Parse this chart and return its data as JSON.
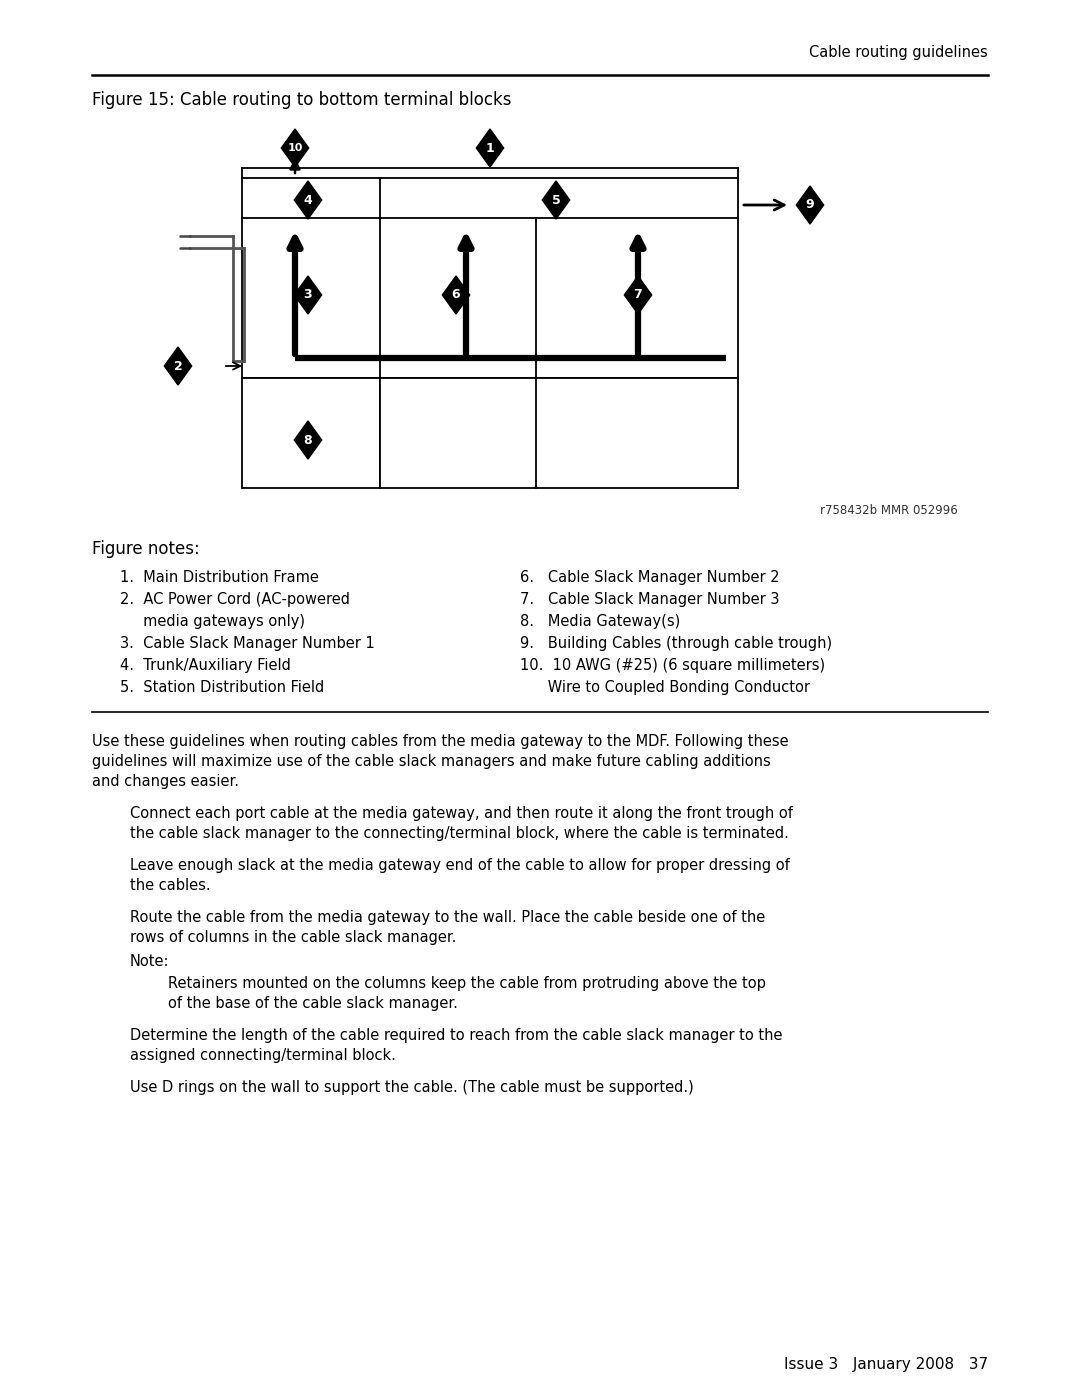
{
  "header_text": "Cable routing guidelines",
  "figure_title": "Figure 15: Cable routing to bottom terminal blocks",
  "ref_text": "r758432b MMR 052996",
  "figure_notes_title": "Figure notes:",
  "footer_text": "Issue 3   January 2008   37",
  "bg_color": "#ffffff",
  "text_color": "#000000",
  "diamond_color": "#000000",
  "diamond_text_color": "#ffffff",
  "notes_left": [
    "1.  Main Distribution Frame",
    "2.  AC Power Cord (AC-powered",
    "     media gateways only)",
    "3.  Cable Slack Manager Number 1",
    "4.  Trunk/Auxiliary Field",
    "5.  Station Distribution Field"
  ],
  "notes_right": [
    "6.  Cable Slack Manager Number 2",
    "7.  Cable Slack Manager Number 3",
    "8.  Media Gateway(s)",
    "9.  Building Cables (through cable trough)",
    "10. 10 AWG (#25) (6 square millimeters)",
    "     Wire to Coupled Bonding Conductor"
  ]
}
